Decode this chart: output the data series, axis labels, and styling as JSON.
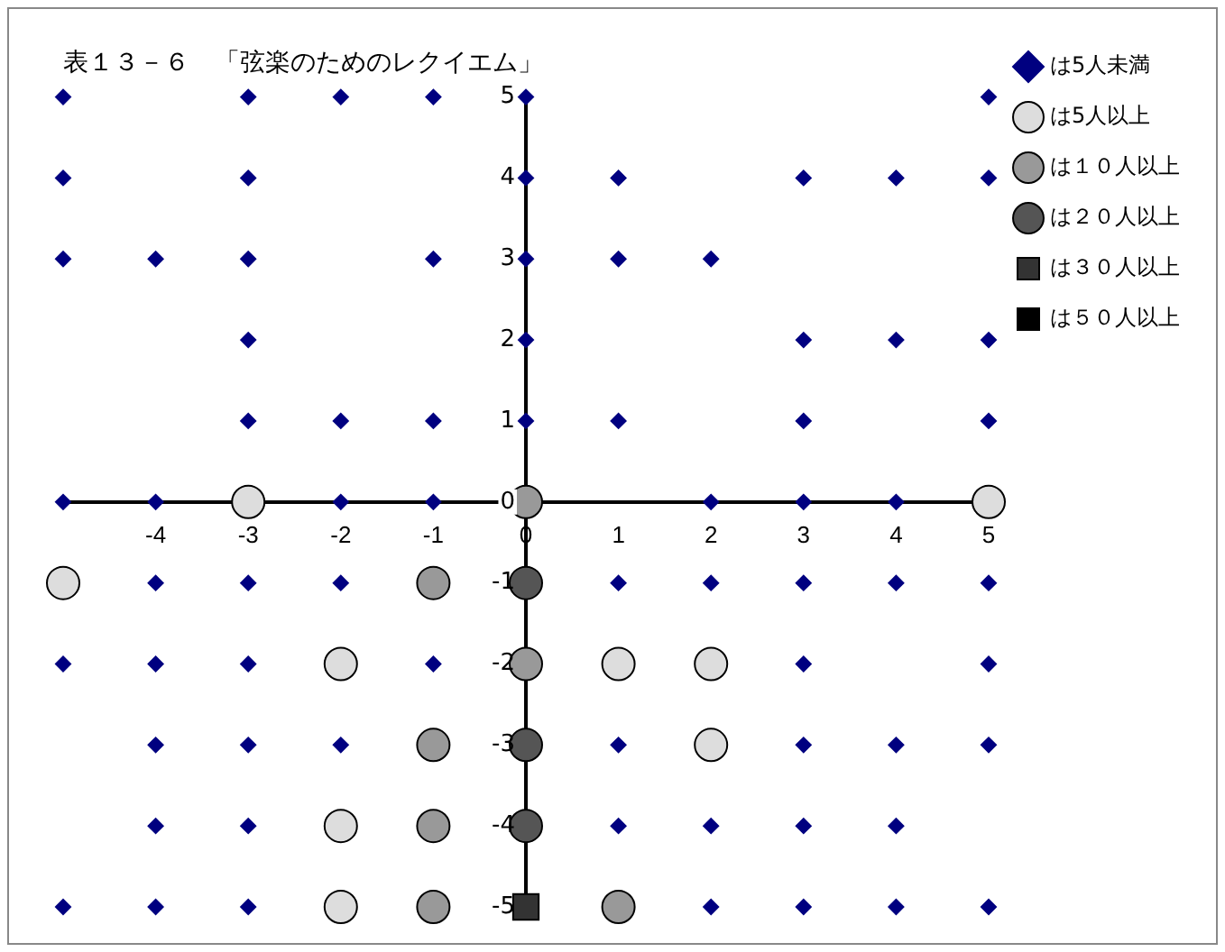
{
  "chart_data": {
    "type": "scatter",
    "title": "表１３－６　「弦楽のためのレクイエム」",
    "legend": "top right",
    "grid": false,
    "xlim": [
      -5,
      5
    ],
    "ylim": [
      -5,
      5
    ],
    "xticks": [
      -4,
      -3,
      -2,
      -1,
      0,
      1,
      2,
      3,
      4,
      5
    ],
    "yticks": [
      -5,
      -4,
      -3,
      -2,
      -1,
      0,
      1,
      2,
      3,
      4,
      5
    ],
    "series": [
      {
        "name": "は5人未満",
        "color": "#000080",
        "marker": "diamond",
        "x": [
          -5,
          -3,
          -2,
          -1,
          0,
          5,
          -5,
          -3,
          0,
          1,
          3,
          4,
          5,
          -5,
          -4,
          -3,
          -1,
          0,
          1,
          2,
          -3,
          0,
          3,
          4,
          5,
          -3,
          -2,
          -1,
          0,
          1,
          3,
          5,
          -5,
          -4,
          -2,
          -1,
          2,
          3,
          4,
          -4,
          -3,
          -2,
          1,
          2,
          3,
          4,
          5,
          -5,
          -4,
          -3,
          -1,
          3,
          5,
          -4,
          -3,
          -2,
          1,
          3,
          4,
          5,
          -4,
          -3,
          1,
          2,
          3,
          4,
          -5,
          -4,
          -3,
          2,
          3,
          4,
          5
        ],
        "values": [
          5,
          5,
          5,
          5,
          5,
          5,
          4,
          4,
          4,
          4,
          4,
          4,
          4,
          3,
          3,
          3,
          3,
          3,
          3,
          3,
          2,
          2,
          2,
          2,
          2,
          1,
          1,
          1,
          1,
          1,
          1,
          1,
          0,
          0,
          0,
          0,
          0,
          0,
          0,
          -1,
          -1,
          -1,
          -1,
          -1,
          -1,
          -1,
          -1,
          -2,
          -2,
          -2,
          -2,
          -2,
          -2,
          -3,
          -3,
          -3,
          -3,
          -3,
          -3,
          -3,
          -4,
          -4,
          -4,
          -4,
          -4,
          -4,
          -5,
          -5,
          -5,
          -5,
          -5,
          -5,
          -5
        ]
      },
      {
        "name": "は5人以上",
        "color": "#dddddd",
        "marker": "circle",
        "x": [
          -3,
          5,
          -5,
          -2,
          1,
          2,
          2,
          -2,
          -2
        ],
        "values": [
          0,
          0,
          -1,
          -2,
          -2,
          -2,
          -3,
          -4,
          -5
        ]
      },
      {
        "name": "は１０人以上",
        "color": "#999999",
        "marker": "circle",
        "x": [
          0,
          -1,
          0,
          -1,
          -1,
          -1,
          1
        ],
        "values": [
          0,
          -1,
          -2,
          -3,
          -4,
          -5,
          -5
        ]
      },
      {
        "name": "は２０人以上",
        "color": "#555555",
        "marker": "circle",
        "x": [
          0,
          0,
          0
        ],
        "values": [
          -1,
          -3,
          -4
        ]
      },
      {
        "name": "は３０人以上",
        "color": "#333333",
        "marker": "square",
        "x": [
          0
        ],
        "values": [
          -5
        ]
      },
      {
        "name": "は５０人以上",
        "color": "#000000",
        "marker": "square"
      }
    ]
  }
}
